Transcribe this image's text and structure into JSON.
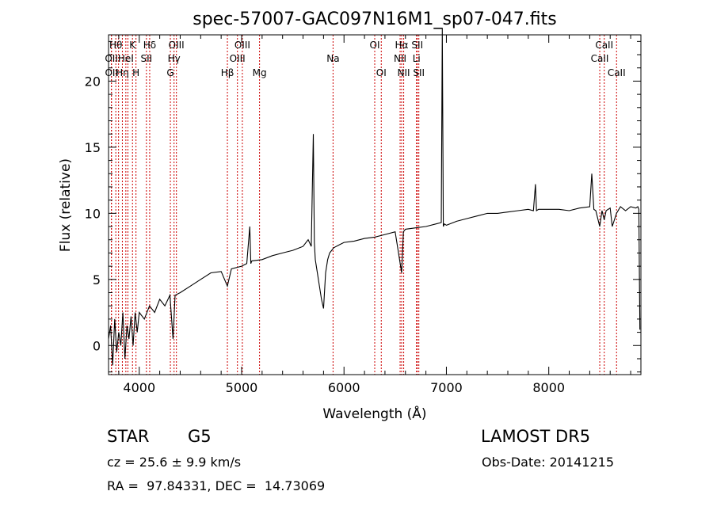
{
  "chart_data": {
    "type": "line",
    "title": "spec-57007-GAC097N16M1_sp07-047.fits",
    "xlabel": "Wavelength (Å)",
    "ylabel": "Flux (relative)",
    "xlim": [
      3700,
      8900
    ],
    "ylim": [
      -2.2,
      23.5
    ],
    "xticks": [
      4000,
      5000,
      6000,
      7000,
      8000
    ],
    "yticks": [
      0,
      5,
      10,
      15,
      20
    ],
    "xtick_labels": [
      "4000",
      "5000",
      "6000",
      "7000",
      "8000"
    ],
    "ytick_labels": [
      "0",
      "5",
      "10",
      "15",
      "20"
    ],
    "series": [
      {
        "x": [
          3700,
          3720,
          3740,
          3760,
          3780,
          3800,
          3820,
          3840,
          3860,
          3880,
          3900,
          3920,
          3940,
          3960,
          3980,
          4000,
          4050,
          4100,
          4150,
          4200,
          4250,
          4300,
          4330,
          4350,
          4400,
          4500,
          4600,
          4700,
          4800,
          4861,
          4900,
          5000,
          5050,
          5080,
          5090,
          5100,
          5200,
          5300,
          5400,
          5500,
          5600,
          5650,
          5680,
          5700,
          5710,
          5720,
          5740,
          5760,
          5780,
          5800,
          5820,
          5840,
          5860,
          5880,
          5900,
          5950,
          6000,
          6100,
          6200,
          6300,
          6400,
          6500,
          6563,
          6580,
          6600,
          6700,
          6800,
          6900,
          6950,
          6960,
          6970,
          6980,
          7000,
          7100,
          7200,
          7300,
          7400,
          7500,
          7600,
          7700,
          7800,
          7850,
          7870,
          7880,
          7900,
          8000,
          8100,
          8200,
          8300,
          8400,
          8420,
          8440,
          8460,
          8498,
          8520,
          8542,
          8560,
          8600,
          8620,
          8662,
          8700,
          8750,
          8800,
          8850,
          8870,
          8880,
          8890
        ],
        "y": [
          0.5,
          1.5,
          -1.5,
          2.0,
          -0.5,
          1.0,
          0.0,
          2.5,
          -1.0,
          1.5,
          0.5,
          2.2,
          0.0,
          2.5,
          1.0,
          2.5,
          2.0,
          3.0,
          2.5,
          3.5,
          3.0,
          3.8,
          0.5,
          3.8,
          4.0,
          4.5,
          5.0,
          5.5,
          5.6,
          4.5,
          5.8,
          6.0,
          6.2,
          9.0,
          6.2,
          6.4,
          6.5,
          6.8,
          7.0,
          7.2,
          7.5,
          8.0,
          7.5,
          16.0,
          7.8,
          6.5,
          5.5,
          4.5,
          3.5,
          2.8,
          5.5,
          6.5,
          7.0,
          7.2,
          7.4,
          7.6,
          7.8,
          7.9,
          8.1,
          8.2,
          8.4,
          8.6,
          5.5,
          8.6,
          8.8,
          8.9,
          9.0,
          9.2,
          9.3,
          24.0,
          9.0,
          9.2,
          9.1,
          9.4,
          9.6,
          9.8,
          10.0,
          10.0,
          10.1,
          10.2,
          10.3,
          10.2,
          12.2,
          10.2,
          10.3,
          10.3,
          10.3,
          10.2,
          10.4,
          10.5,
          13.0,
          10.3,
          10.2,
          9.0,
          10.2,
          9.5,
          10.2,
          10.4,
          9.0,
          10.0,
          10.5,
          10.2,
          10.5,
          10.4,
          10.5,
          10.3,
          1.2
        ]
      }
    ],
    "grid": false,
    "legend": "none",
    "line_color": "#000000",
    "marker_color": "#cc0000"
  },
  "spectral_lines": [
    {
      "x": 3728,
      "label": "OII",
      "row": 1
    },
    {
      "x": 3729,
      "label": "OII",
      "row": 2
    },
    {
      "x": 3771,
      "label": "Hθ",
      "row": 0
    },
    {
      "x": 3798,
      "label": "",
      "row": 0
    },
    {
      "x": 3835,
      "label": "Hη",
      "row": 2
    },
    {
      "x": 3869,
      "label": "HeI",
      "row": 1
    },
    {
      "x": 3889,
      "label": "",
      "row": 1
    },
    {
      "x": 3934,
      "label": "K",
      "row": 0
    },
    {
      "x": 3968,
      "label": "H",
      "row": 2
    },
    {
      "x": 4070,
      "label": "SII",
      "row": 1
    },
    {
      "x": 4102,
      "label": "Hδ",
      "row": 0
    },
    {
      "x": 4304,
      "label": "G",
      "row": 2
    },
    {
      "x": 4340,
      "label": "Hγ",
      "row": 1
    },
    {
      "x": 4363,
      "label": "OIII",
      "row": 0
    },
    {
      "x": 4861,
      "label": "Hβ",
      "row": 2
    },
    {
      "x": 4959,
      "label": "OIII",
      "row": 1
    },
    {
      "x": 5007,
      "label": "OIII",
      "row": 0
    },
    {
      "x": 5175,
      "label": "Mg",
      "row": 2
    },
    {
      "x": 5893,
      "label": "Na",
      "row": 1
    },
    {
      "x": 6300,
      "label": "OI",
      "row": 0
    },
    {
      "x": 6364,
      "label": "OI",
      "row": 2
    },
    {
      "x": 6548,
      "label": "NII",
      "row": 1
    },
    {
      "x": 6563,
      "label": "Hα",
      "row": 0
    },
    {
      "x": 6583,
      "label": "NII",
      "row": 2
    },
    {
      "x": 6708,
      "label": "Li",
      "row": 1
    },
    {
      "x": 6716,
      "label": "SII",
      "row": 0
    },
    {
      "x": 6731,
      "label": "SII",
      "row": 2
    },
    {
      "x": 8498,
      "label": "CaII",
      "row": 1
    },
    {
      "x": 8542,
      "label": "CaII",
      "row": 0
    },
    {
      "x": 8662,
      "label": "CaII",
      "row": 2
    }
  ],
  "info": {
    "object_class": "STAR",
    "subclass": "G5",
    "survey": "LAMOST DR5",
    "velocity": "cz = 25.6 ± 9.9 km/s",
    "obs_date": "Obs-Date: 20141215",
    "coords": "RA =  97.84331, DEC =  14.73069"
  }
}
